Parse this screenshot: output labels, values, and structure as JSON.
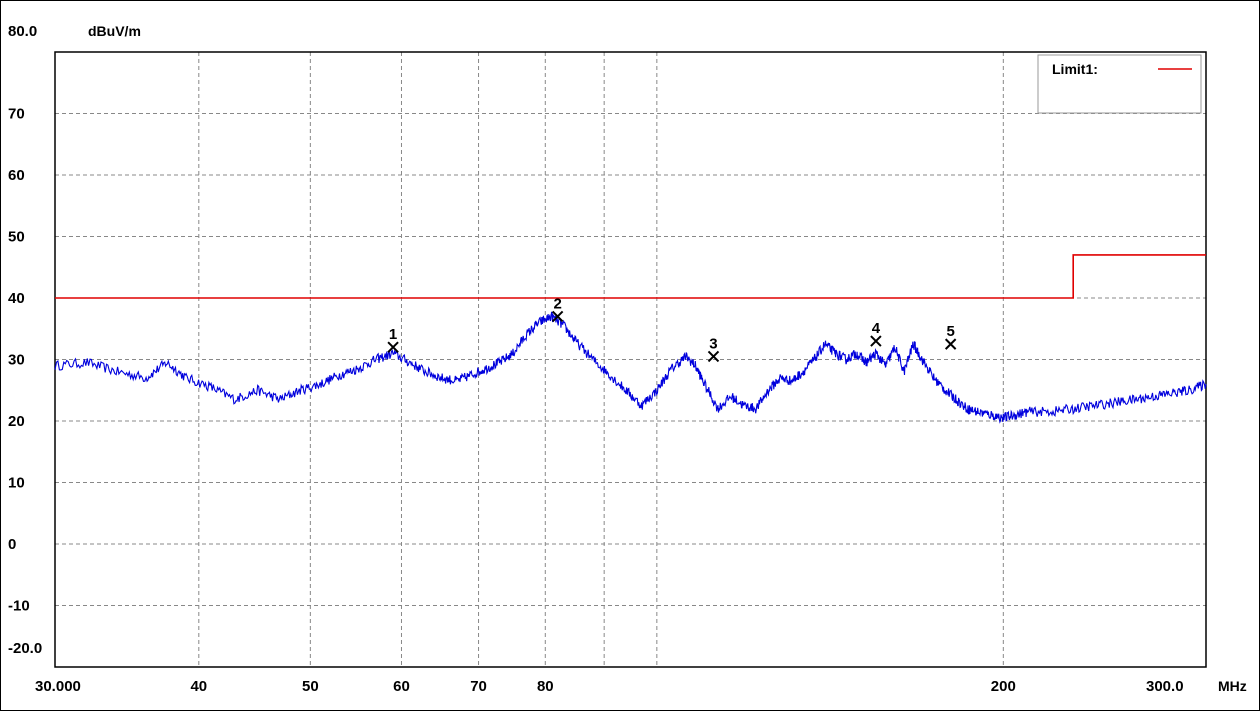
{
  "chart_data": {
    "type": "line",
    "ylabel": "dBuV/m",
    "xunit": "MHz",
    "xscale": "log",
    "xlim": [
      30,
      300
    ],
    "ylim": [
      -20,
      80
    ],
    "y_ticks": [
      {
        "value": 80,
        "label": "80.0"
      },
      {
        "value": 70,
        "label": "70"
      },
      {
        "value": 60,
        "label": "60"
      },
      {
        "value": 50,
        "label": "50"
      },
      {
        "value": 40,
        "label": "40"
      },
      {
        "value": 30,
        "label": "30"
      },
      {
        "value": 20,
        "label": "20"
      },
      {
        "value": 10,
        "label": "10"
      },
      {
        "value": 0,
        "label": "0"
      },
      {
        "value": -10,
        "label": "-10"
      },
      {
        "value": -20,
        "label": "-20.0"
      }
    ],
    "x_ticks": [
      {
        "value": 30,
        "label": "30.000"
      },
      {
        "value": 40,
        "label": "40"
      },
      {
        "value": 50,
        "label": "50"
      },
      {
        "value": 60,
        "label": "60"
      },
      {
        "value": 70,
        "label": "70"
      },
      {
        "value": 80,
        "label": "80"
      },
      {
        "value": 200,
        "label": "200"
      },
      {
        "value": 300,
        "label": "300.0"
      }
    ],
    "x_gridlines": [
      40,
      50,
      60,
      70,
      80,
      90,
      100,
      200,
      300
    ],
    "grid": true,
    "legend": {
      "placement": "top-right",
      "entries": [
        {
          "name": "Limit1:",
          "color": "#e00000"
        }
      ]
    },
    "series": [
      {
        "name": "Limit1:",
        "color": "#e00000",
        "x": [
          30,
          230,
          230,
          300
        ],
        "y": [
          40,
          40,
          47,
          47
        ]
      },
      {
        "color": "#0000dd",
        "x": [
          30,
          32,
          34,
          36,
          37.5,
          39,
          41,
          43,
          45,
          47,
          49,
          51,
          53,
          55,
          57,
          59,
          61,
          63,
          65,
          67,
          69,
          71,
          73,
          75,
          77,
          79,
          81,
          83,
          85,
          88,
          91,
          94,
          97,
          100,
          103,
          106,
          108,
          110,
          113,
          116,
          119,
          122,
          125,
          128,
          131,
          134,
          137,
          140,
          143,
          146,
          149,
          152,
          155,
          158,
          161,
          164,
          167,
          170,
          174,
          178,
          182,
          186,
          190,
          195,
          200,
          205,
          210,
          220,
          230,
          240,
          250,
          260,
          270,
          280,
          290,
          300
        ],
        "y": [
          29,
          29.5,
          28,
          27,
          29.5,
          27,
          25.5,
          23.5,
          25,
          23.5,
          25,
          26,
          27.5,
          28.5,
          30,
          31,
          29.5,
          28,
          27,
          26.5,
          27.5,
          28.5,
          29.5,
          31,
          34,
          36,
          37,
          35.5,
          33,
          30,
          27.5,
          25,
          22.5,
          25,
          28.5,
          30.5,
          29,
          26,
          22,
          24,
          22.5,
          22,
          25,
          27,
          26.5,
          28,
          30,
          32.5,
          31,
          30,
          31,
          29.5,
          31,
          29,
          32,
          28,
          32.5,
          30,
          27,
          25,
          23.5,
          22,
          21.5,
          21,
          20.5,
          21,
          21.5,
          21.5,
          22,
          22.5,
          23,
          23.5,
          24,
          24.5,
          25,
          26
        ]
      }
    ],
    "markers": [
      {
        "label": "1",
        "x": 59,
        "y": 32
      },
      {
        "label": "2",
        "x": 82,
        "y": 37
      },
      {
        "label": "3",
        "x": 112,
        "y": 30.5
      },
      {
        "label": "4",
        "x": 155,
        "y": 33
      },
      {
        "label": "5",
        "x": 180,
        "y": 32.5
      }
    ]
  }
}
